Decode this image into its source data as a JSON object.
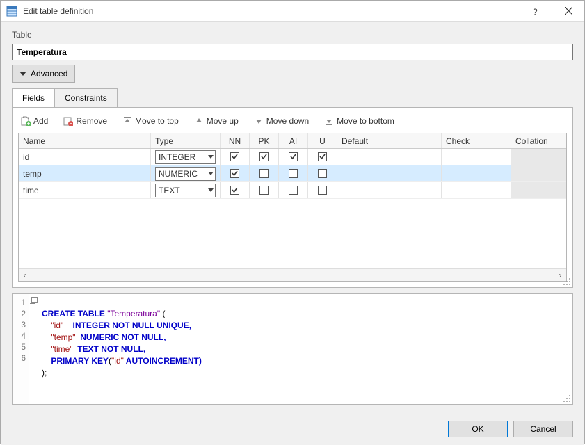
{
  "window": {
    "title": "Edit table definition"
  },
  "table": {
    "label": "Table",
    "name": "Temperatura"
  },
  "advanced": {
    "label": "Advanced"
  },
  "tabs": {
    "fields": "Fields",
    "constraints": "Constraints"
  },
  "toolbar": {
    "add": "Add",
    "remove": "Remove",
    "move_top": "Move to top",
    "move_up": "Move up",
    "move_down": "Move down",
    "move_bottom": "Move to bottom"
  },
  "columns": {
    "name": "Name",
    "type": "Type",
    "nn": "NN",
    "pk": "PK",
    "ai": "AI",
    "u": "U",
    "default": "Default",
    "check": "Check",
    "collation": "Collation"
  },
  "rows": [
    {
      "name": "id",
      "type": "INTEGER",
      "nn": true,
      "pk": true,
      "ai": true,
      "u": true
    },
    {
      "name": "temp",
      "type": "NUMERIC",
      "nn": true,
      "pk": false,
      "ai": false,
      "u": false
    },
    {
      "name": "time",
      "type": "TEXT",
      "nn": true,
      "pk": false,
      "ai": false,
      "u": false
    }
  ],
  "sql": {
    "l1a": "CREATE TABLE ",
    "l1b": "\"Temperatura\"",
    "l1c": " (",
    "l2a": "    ",
    "l2b": "\"id\"",
    "l2c": "    INTEGER NOT NULL UNIQUE,",
    "l3a": "    ",
    "l3b": "\"temp\"",
    "l3c": "  NUMERIC NOT NULL,",
    "l4a": "    ",
    "l4b": "\"time\"",
    "l4c": "  TEXT NOT NULL,",
    "l5a": "    ",
    "l5b": "PRIMARY KEY",
    "l5c": "(",
    "l5d": "\"id\"",
    "l5e": " AUTOINCREMENT)",
    "l6": ");"
  },
  "gutters": [
    "1",
    "2",
    "3",
    "4",
    "5",
    "6"
  ],
  "buttons": {
    "ok": "OK",
    "cancel": "Cancel"
  },
  "colors": {
    "selected_row": "#d6ecff",
    "keyword": "#0000c8",
    "string": "#a31515",
    "window_bg": "#f0f0f0"
  }
}
